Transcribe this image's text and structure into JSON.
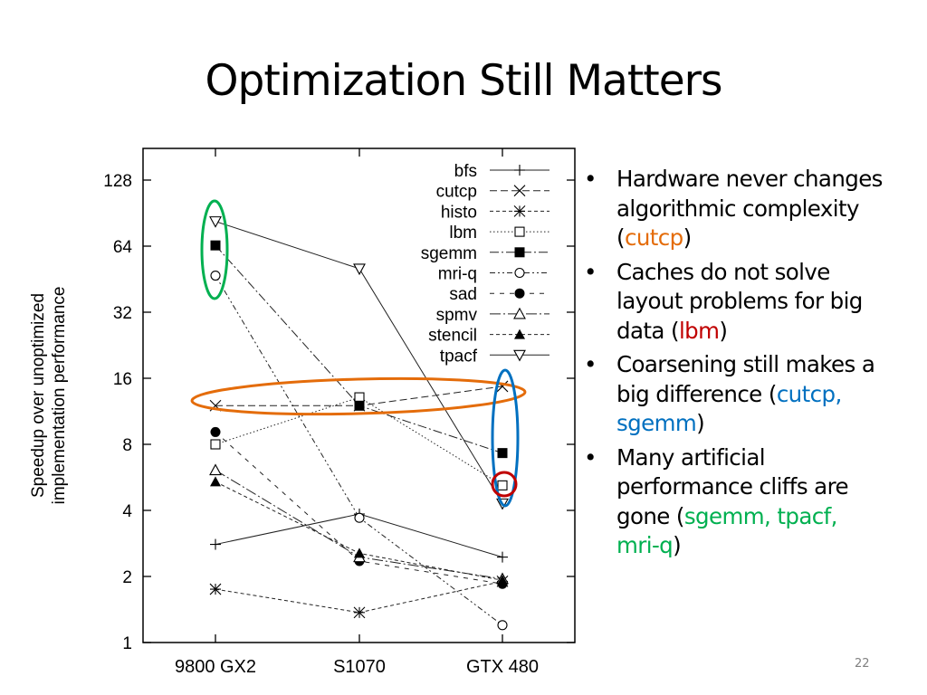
{
  "slide": {
    "title": "Optimization Still Matters",
    "page_number": "22",
    "bullets": [
      {
        "segments": [
          {
            "text": "Hardware never changes algorithmic complexity (",
            "color": "#000000"
          },
          {
            "text": "cutcp",
            "color": "#E46C0A"
          },
          {
            "text": ")",
            "color": "#000000"
          }
        ]
      },
      {
        "segments": [
          {
            "text": "Caches do not solve layout problems for big data (",
            "color": "#000000"
          },
          {
            "text": "lbm",
            "color": "#C00000"
          },
          {
            "text": ")",
            "color": "#000000"
          }
        ]
      },
      {
        "segments": [
          {
            "text": "Coarsening still makes a big difference (",
            "color": "#000000"
          },
          {
            "text": "cutcp, sgemm",
            "color": "#0070C0"
          },
          {
            "text": ")",
            "color": "#000000"
          }
        ]
      },
      {
        "segments": [
          {
            "text": "Many artificial performance cliffs are gone (",
            "color": "#000000"
          },
          {
            "text": "sgemm, tpacf, mri-q",
            "color": "#00B050"
          },
          {
            "text": ")",
            "color": "#000000"
          }
        ]
      }
    ],
    "bullet_glyph": "•"
  },
  "chart_data": {
    "type": "line",
    "title": "",
    "xlabel": "",
    "ylabel": "Speedup over unoptimized implementation performance",
    "ylabel_lines": [
      "Speedup over unoptimized",
      "implementation performance"
    ],
    "yscale": "log2",
    "ylim": [
      1,
      128
    ],
    "yticks": [
      1,
      2,
      4,
      8,
      16,
      32,
      64,
      128
    ],
    "categories": [
      "9800 GX2",
      "S1070",
      "GTX 480"
    ],
    "legend_position": "top-right",
    "series": [
      {
        "name": "bfs",
        "marker": "plus",
        "dash": "solid",
        "values": [
          2.8,
          3.85,
          2.45
        ]
      },
      {
        "name": "cutcp",
        "marker": "x",
        "dash": "dashed",
        "values": [
          12,
          12,
          14.7
        ]
      },
      {
        "name": "histo",
        "marker": "star",
        "dash": "dotted-dash-short",
        "values": [
          1.75,
          1.37,
          1.9
        ]
      },
      {
        "name": "lbm",
        "marker": "square-open",
        "dash": "dotted",
        "values": [
          8,
          13.1,
          5.2
        ]
      },
      {
        "name": "sgemm",
        "marker": "square-filled",
        "dash": "dash-dot",
        "values": [
          64.5,
          12,
          7.3
        ]
      },
      {
        "name": "mri-q",
        "marker": "circle-open",
        "dash": "dash-dot-dot",
        "values": [
          47,
          3.7,
          1.2
        ]
      },
      {
        "name": "sad",
        "marker": "circle-filled",
        "dash": "sparse-dash",
        "values": [
          9.1,
          2.35,
          1.85
        ]
      },
      {
        "name": "spmv",
        "marker": "triangle-open",
        "dash": "long-dash-dot",
        "values": [
          6.1,
          2.45,
          1.95
        ]
      },
      {
        "name": "stencil",
        "marker": "triangle-filled",
        "dash": "short-dash",
        "values": [
          5.4,
          2.55,
          1.92
        ]
      },
      {
        "name": "tpacf",
        "marker": "triangle-down-open",
        "dash": "solid",
        "values": [
          83,
          50.5,
          4.3
        ]
      }
    ],
    "annotations": [
      {
        "shape": "ellipse",
        "color": "#00B050",
        "encloses": [
          "tpacf",
          "sgemm",
          "mri-q"
        ],
        "category": "9800 GX2"
      },
      {
        "shape": "ellipse",
        "color": "#E46C0A",
        "encloses": [
          "cutcp"
        ],
        "category": "all"
      },
      {
        "shape": "ellipse",
        "color": "#0070C0",
        "encloses": [
          "cutcp",
          "sgemm"
        ],
        "category": "GTX 480"
      },
      {
        "shape": "circle",
        "color": "#C00000",
        "encloses": [
          "lbm"
        ],
        "category": "GTX 480"
      }
    ]
  }
}
